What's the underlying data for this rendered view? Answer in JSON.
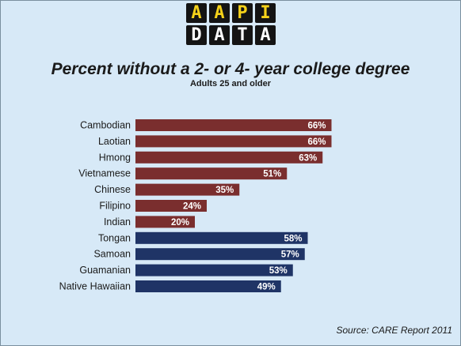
{
  "logo": {
    "row1": [
      {
        "letter": "A",
        "color": "#f5d21a"
      },
      {
        "letter": "A",
        "color": "#f5d21a"
      },
      {
        "letter": "P",
        "color": "#f5d21a"
      },
      {
        "letter": "I",
        "color": "#f5d21a"
      }
    ],
    "row2": [
      {
        "letter": "D",
        "color": "#ffffff"
      },
      {
        "letter": "A",
        "color": "#ffffff"
      },
      {
        "letter": "T",
        "color": "#ffffff"
      },
      {
        "letter": "A",
        "color": "#ffffff"
      }
    ]
  },
  "chart_data": {
    "type": "bar",
    "orientation": "horizontal",
    "title": "Percent without a 2- or 4- year college degree",
    "subtitle": "Adults 25 and older",
    "categories": [
      "Cambodian",
      "Laotian",
      "Hmong",
      "Vietnamese",
      "Chinese",
      "Filipino",
      "Indian",
      "Tongan",
      "Samoan",
      "Guamanian",
      "Native Hawaiian"
    ],
    "values": [
      66,
      66,
      63,
      51,
      35,
      24,
      20,
      58,
      57,
      53,
      49
    ],
    "value_labels": [
      "66%",
      "66%",
      "63%",
      "51%",
      "35%",
      "24%",
      "20%",
      "58%",
      "57%",
      "53%",
      "49%"
    ],
    "colors": [
      "#7a2e2e",
      "#7a2e2e",
      "#7a2e2e",
      "#7a2e2e",
      "#7a2e2e",
      "#7a2e2e",
      "#7a2e2e",
      "#1f3466",
      "#1f3466",
      "#1f3466",
      "#1f3466"
    ],
    "xlim": [
      0,
      100
    ],
    "grid": false,
    "legend": "none"
  },
  "source": "Source: CARE Report 2011"
}
